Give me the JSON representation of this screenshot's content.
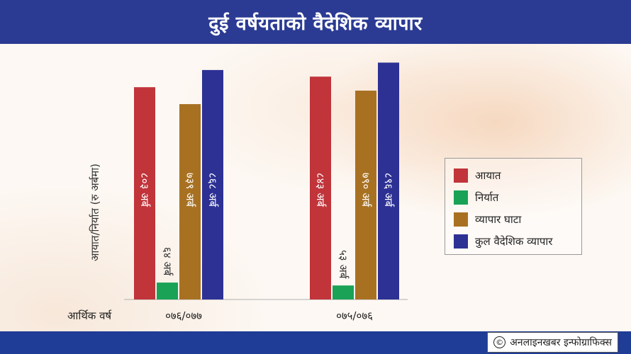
{
  "header": {
    "title": "दुई वर्षयताको वैदेशिक व्यापार"
  },
  "footer": {
    "credit": "अनलाइनखबर इन्फोग्राफिक्स",
    "copyright_symbol": "©"
  },
  "colors": {
    "header_bg": "#2b3b93",
    "import": "#c0343a",
    "export": "#1aa256",
    "deficit": "#a87122",
    "total": "#2d3194"
  },
  "chart_data": {
    "type": "bar",
    "ylabel": "आयात/निर्यात (रु अर्बमा)",
    "xlabel": "आर्थिक वर्ष",
    "categories": [
      "०७६/०७७",
      "०७५/०७६"
    ],
    "ylim": [
      0,
      1000
    ],
    "series": [
      {
        "name": "आयात",
        "values": [
          803,
          843
        ],
        "labels": [
          "८०३ अर्ब",
          "८४३ अर्ब"
        ]
      },
      {
        "name": "निर्यात",
        "values": [
          64,
          53
        ],
        "labels": [
          "६४ अर्ब",
          "५३ अर्ब"
        ]
      },
      {
        "name": "व्यापार घाटा",
        "values": [
          739,
          790
        ],
        "labels": [
          "७३९ अर्ब",
          "७९० अर्ब"
        ]
      },
      {
        "name": "कुल वैदेशिक व्यापार",
        "values": [
          868,
          896
        ],
        "labels": [
          "८६८ अर्ब",
          "८९६ अर्ब"
        ]
      }
    ],
    "legend_position": "right"
  }
}
